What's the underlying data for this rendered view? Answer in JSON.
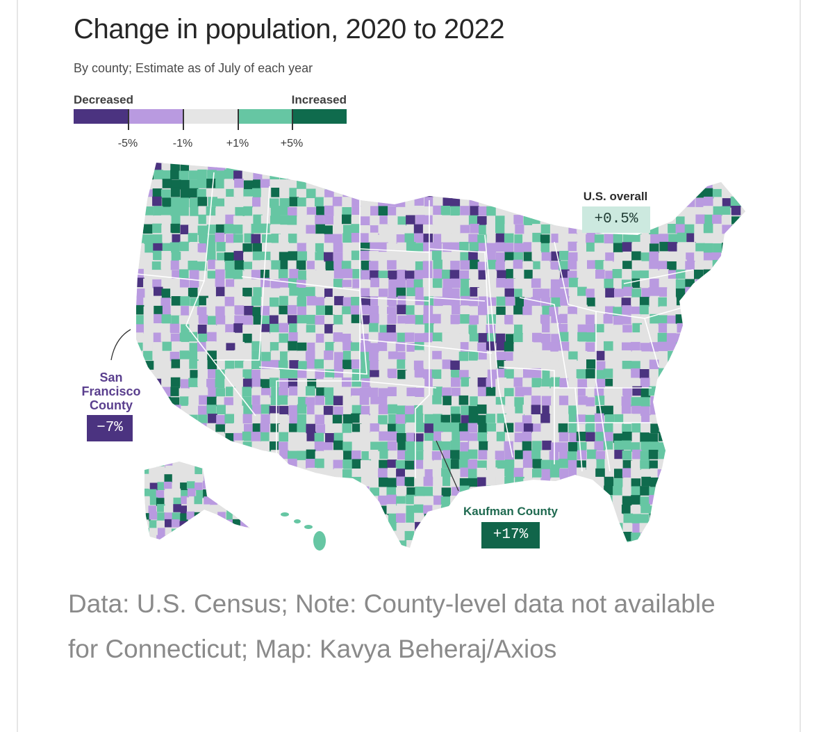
{
  "header": {
    "title": "Change in population, 2020 to 2022",
    "subtitle": "By county; Estimate as of July of each year"
  },
  "legend": {
    "left_label": "Decreased",
    "right_label": "Increased",
    "colors": [
      "#4b3380",
      "#b99ae0",
      "#e5e5e5",
      "#66c6a3",
      "#0f6b4d"
    ],
    "ticks": [
      "-5%",
      "-1%",
      "+1%",
      "+5%"
    ]
  },
  "map": {
    "colors": {
      "land_default": "#e2e2e2",
      "state_border": "#ffffff",
      "dark_purple": "#4b3380",
      "light_purple": "#b99ae0",
      "light_green": "#66c6a3",
      "dark_green": "#0f6b4d"
    },
    "callouts": {
      "sf": {
        "label": "San Francisco County",
        "value": "−7%"
      },
      "kaufman": {
        "label": "Kaufman County",
        "value": "+17%"
      },
      "us": {
        "label": "U.S. overall",
        "value": "+0.5%"
      }
    }
  },
  "source": {
    "text": "Data: U.S. Census; Note: County-level data not available for Connecticut; Map: Kavya Beheraj/Axios"
  }
}
